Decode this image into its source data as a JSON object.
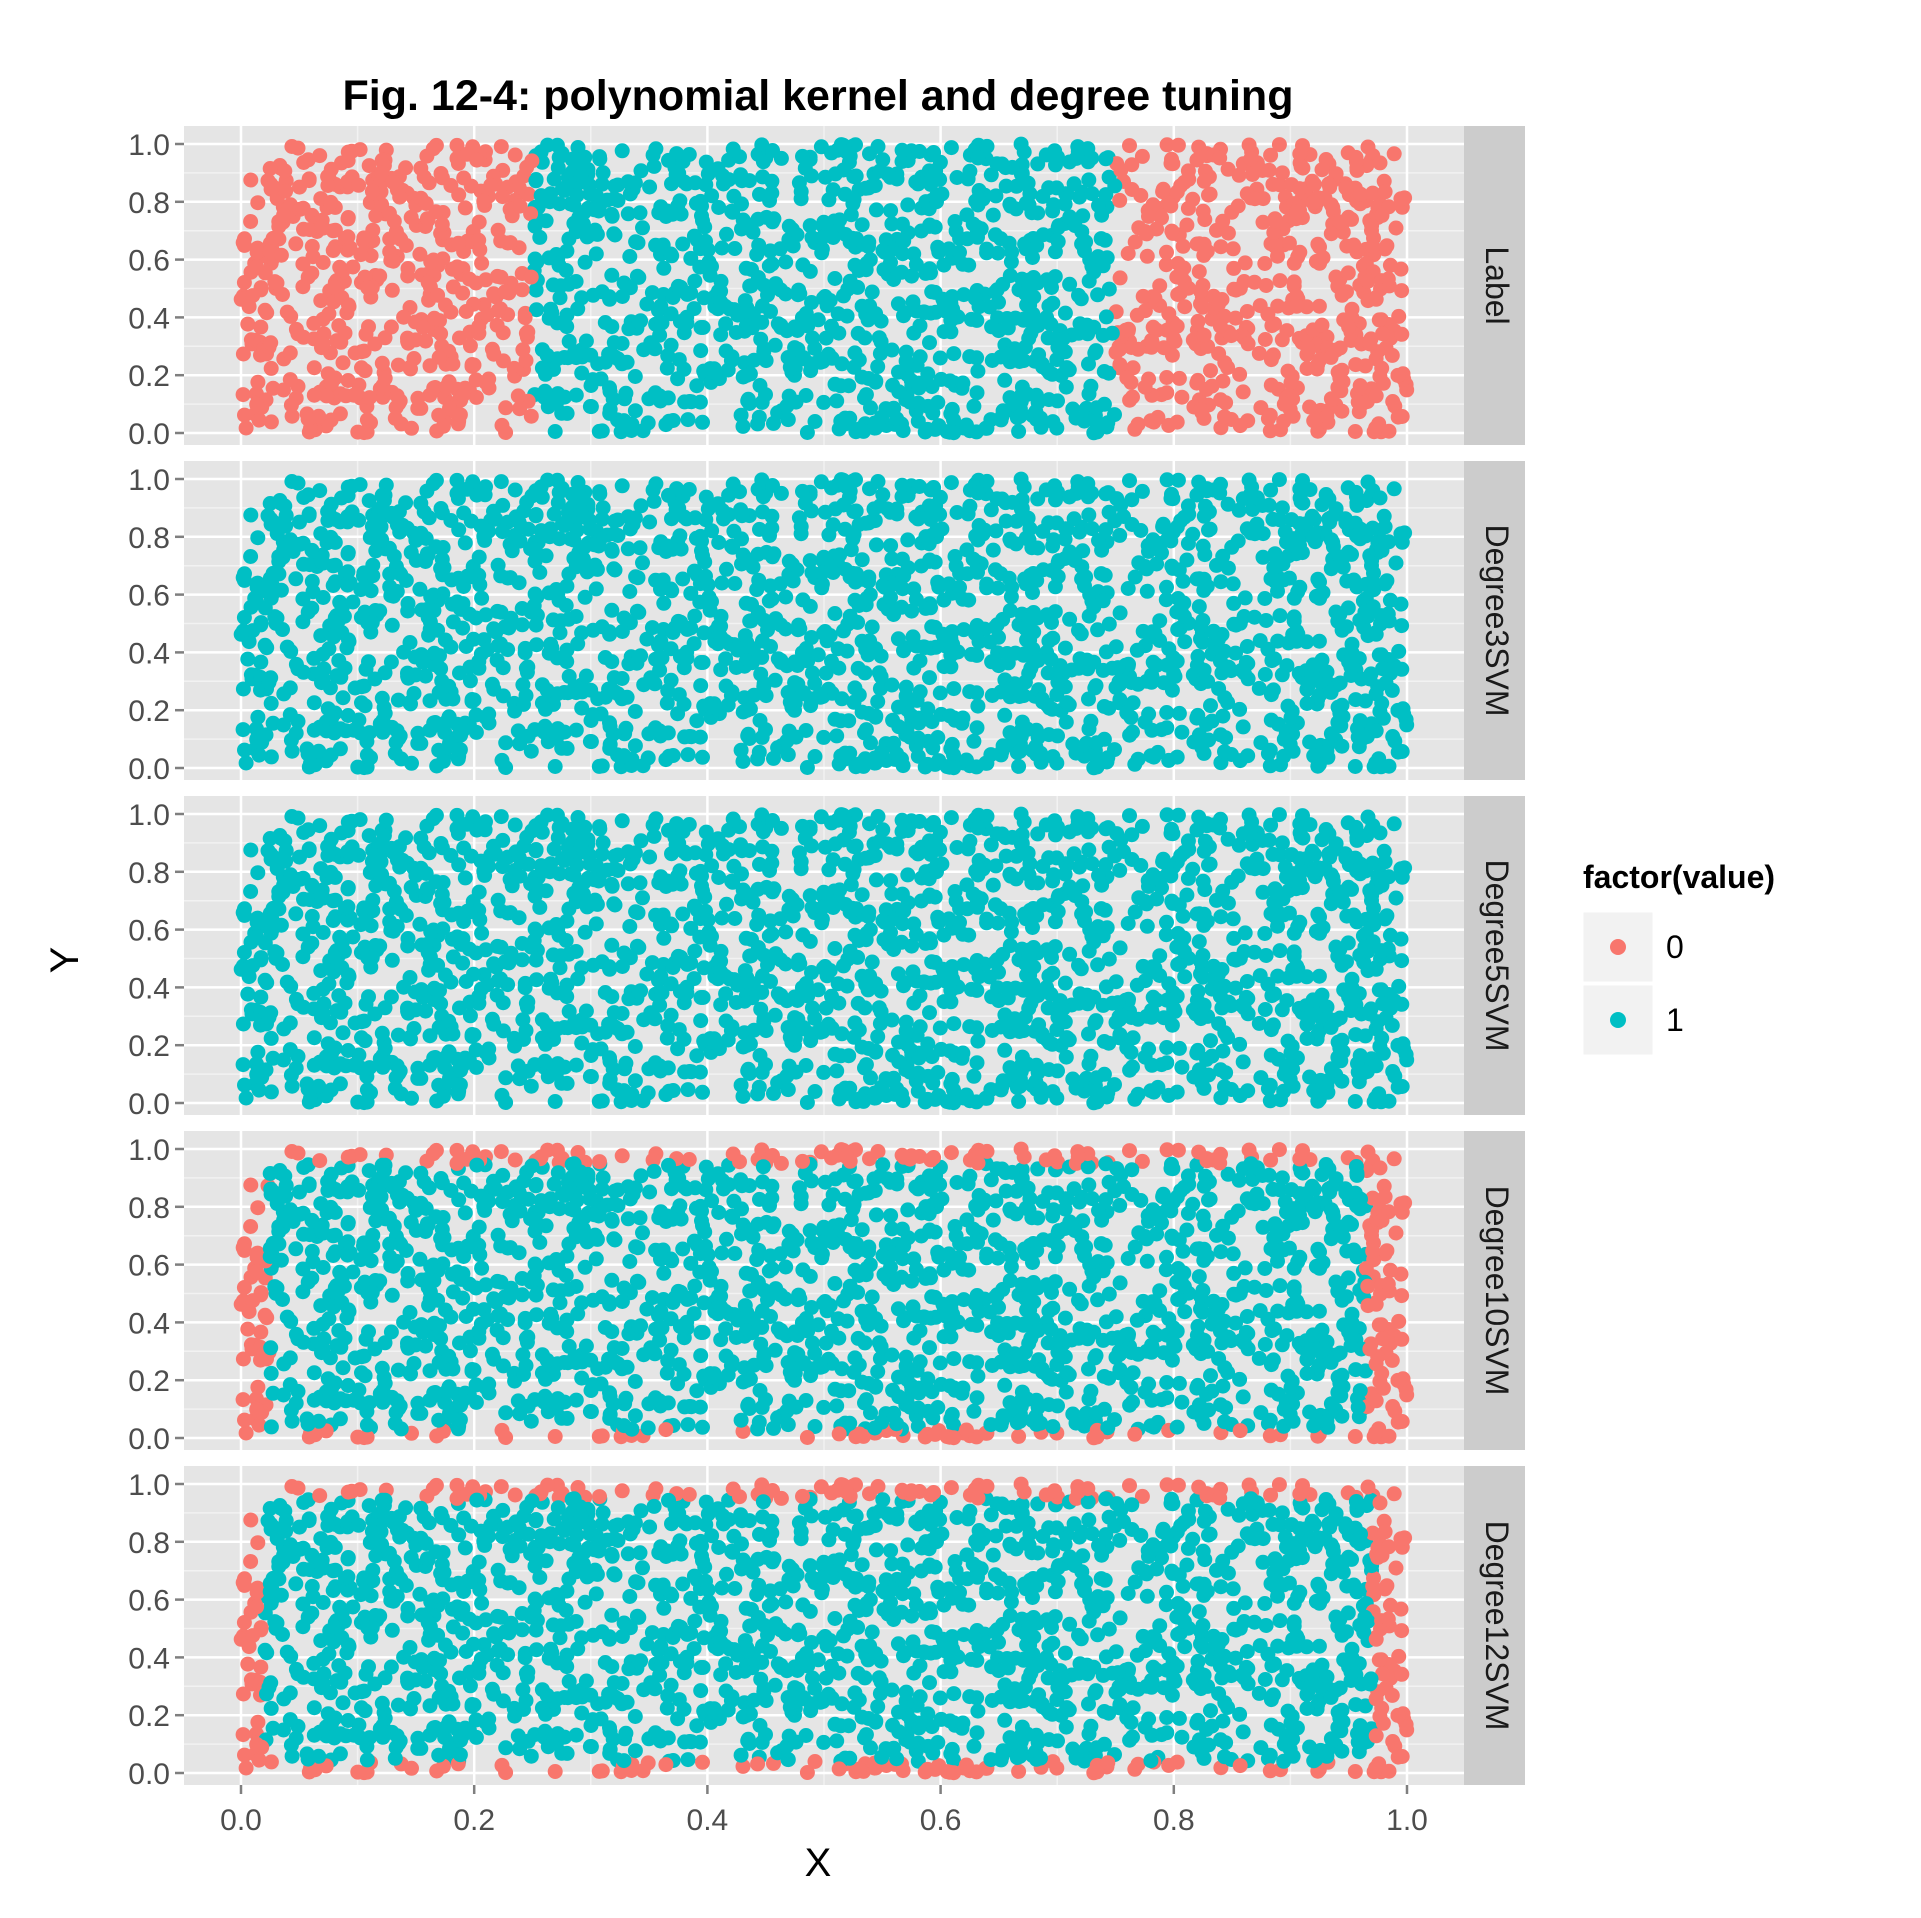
{
  "chart_data": {
    "type": "scatter",
    "title": "Fig. 12-4: polynomial kernel and degree tuning",
    "xlabel": "X",
    "ylabel": "Y",
    "xlim": [
      0.0,
      1.0
    ],
    "ylim": [
      0.0,
      1.0
    ],
    "x_ticks": [
      "0.0",
      "0.2",
      "0.4",
      "0.6",
      "0.8",
      "1.0"
    ],
    "y_ticks": [
      "0.0",
      "0.2",
      "0.4",
      "0.6",
      "0.8",
      "1.0"
    ],
    "grid": true,
    "facets": [
      "Label",
      "Degree3SVM",
      "Degree5SVM",
      "Degree10SVM",
      "Degree12SVM"
    ],
    "legend": {
      "title": "factor(value)",
      "position": "right",
      "items": [
        {
          "label": "0",
          "color": "#F8766D"
        },
        {
          "label": "1",
          "color": "#00BFC4"
        }
      ]
    },
    "n_points_approx": 2000,
    "class_rules": {
      "Label": "value 0 where X < 0.25 or X > 0.75; value 1 otherwise",
      "Degree3SVM": "value 1 everywhere",
      "Degree5SVM": "value 1 everywhere",
      "Degree10SVM": "value 1 inside approx X 0.025-0.965, Y 0.03-0.95; value 0 near the edges",
      "Degree12SVM": "value 1 inside approx X 0.02-0.97, Y 0.04-0.95; value 0 near the edges"
    }
  }
}
